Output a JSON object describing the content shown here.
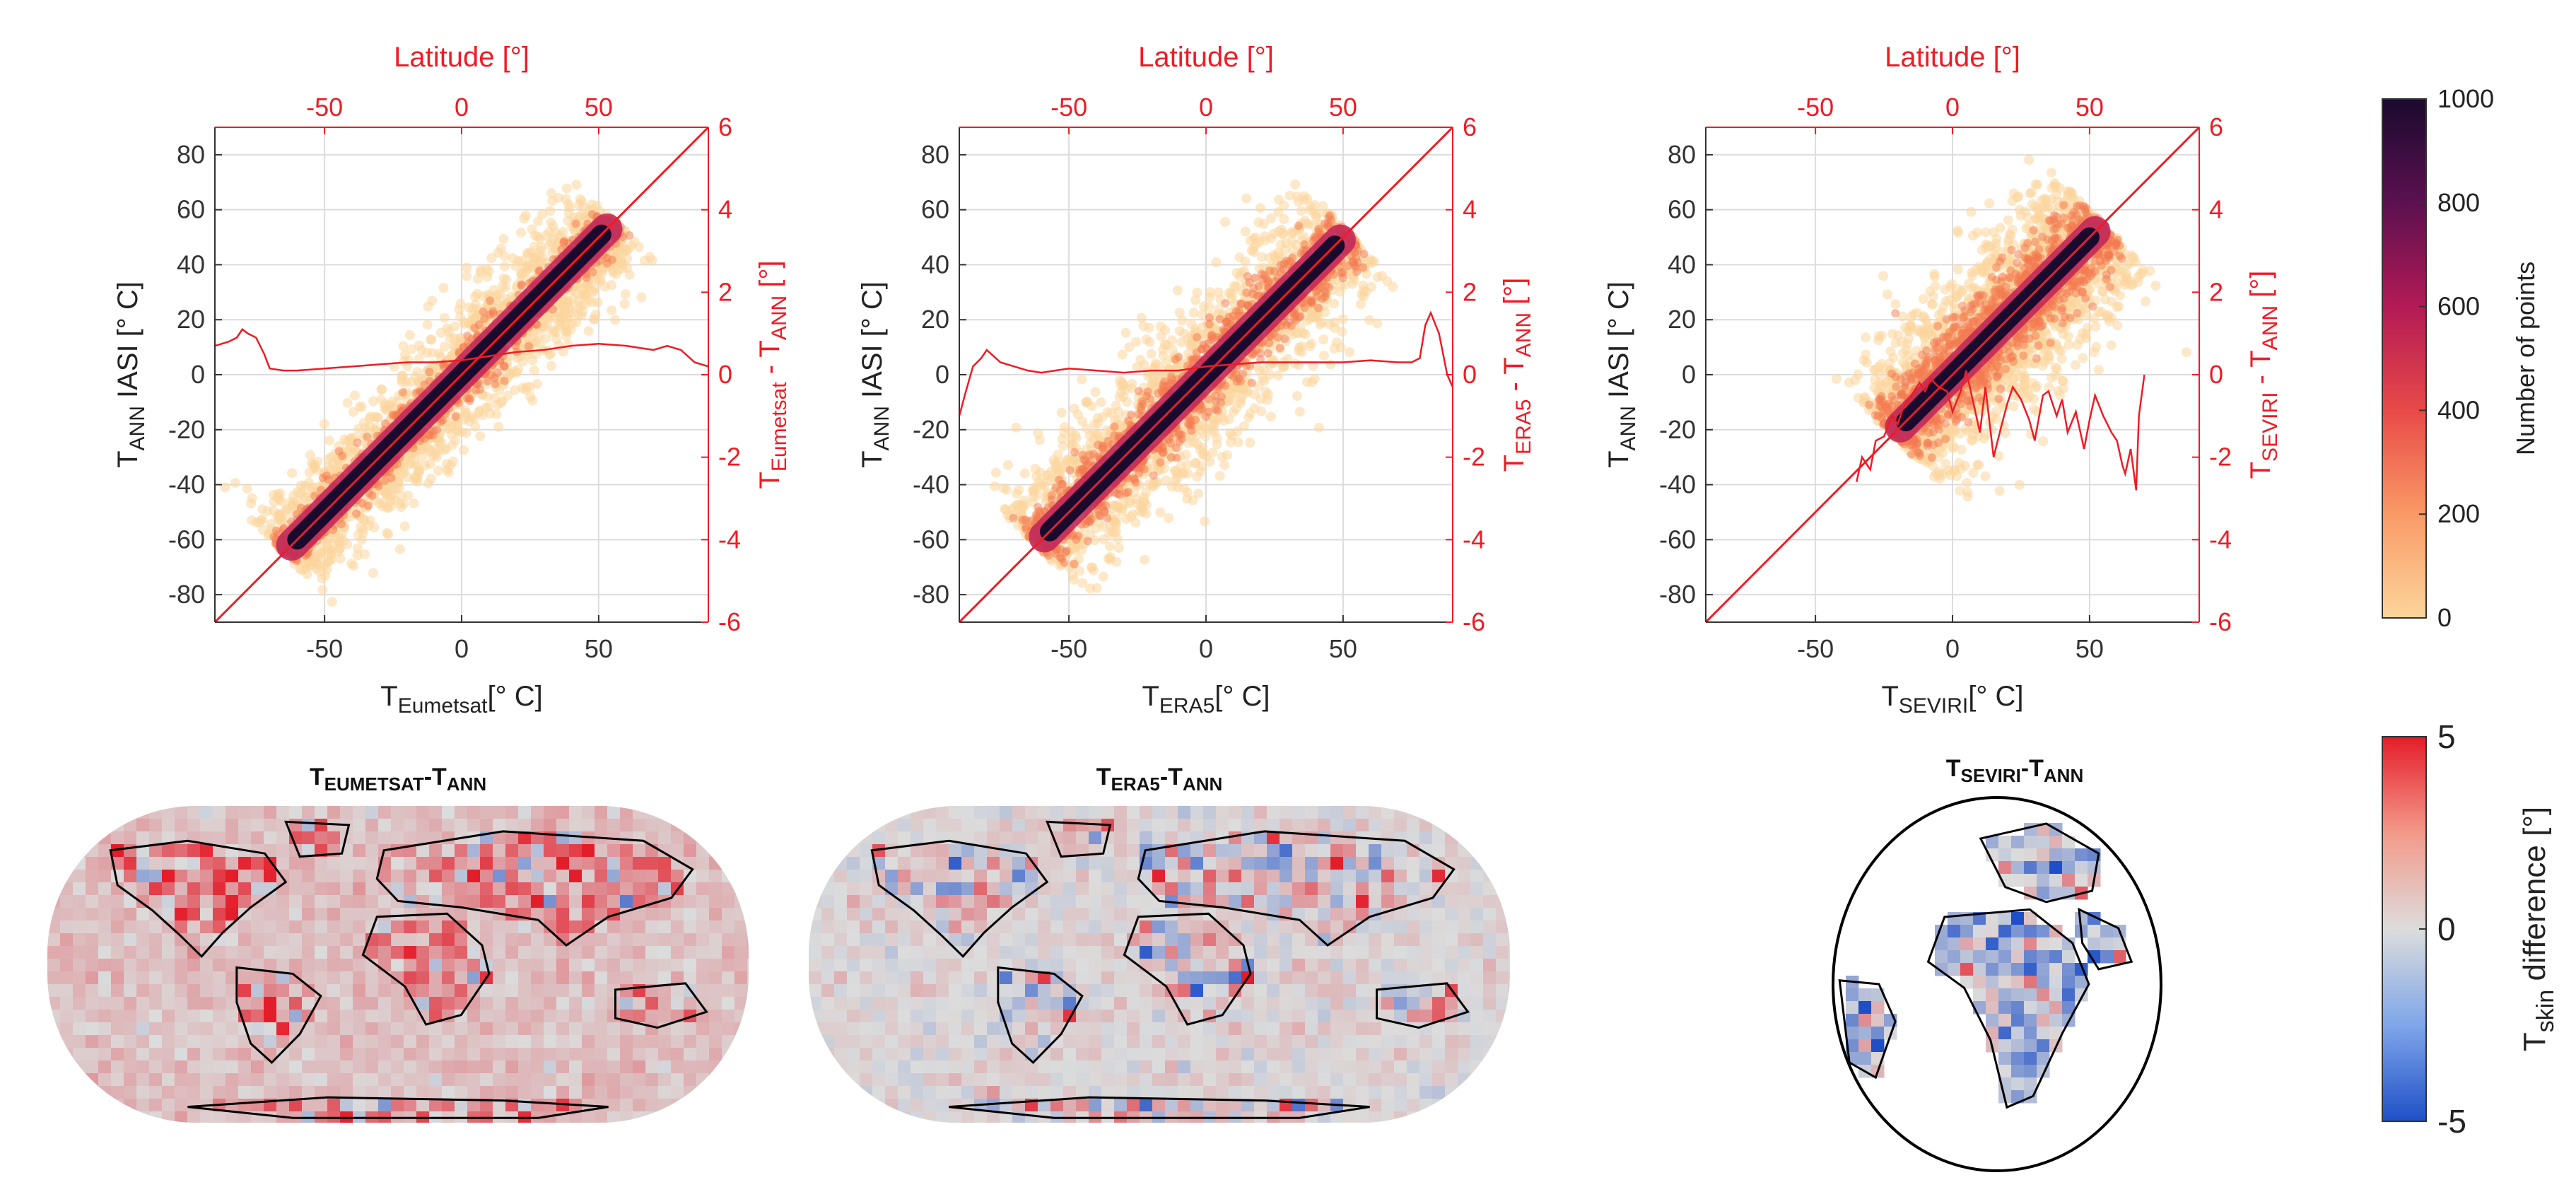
{
  "figure": {
    "red_color": "#ee1c24",
    "density_low_color": "#fbd59c",
    "density_high_color": "#1a0a2e",
    "diff_low_color": "#1f4fc7",
    "diff_mid_color": "#dcdcdc",
    "diff_high_color": "#e41d2a",
    "land_outline_color": "#000000"
  },
  "chart_data": [
    {
      "type": "heatmap",
      "panel": "scatter-eumetsat",
      "xlabel_main": "T",
      "xlabel_sub": "Eumetsat",
      "xlabel_tail": "[° C]",
      "ylabel_main": "T",
      "ylabel_sub": "ANN",
      "ylabel_tail": " IASI [° C]",
      "top_label": "Latitude [°]",
      "right_label_main": "T",
      "right_label_sub1": "Eumetsat",
      "right_label_mid": " - T",
      "right_label_sub2": "ANN",
      "right_label_tail": " [°]",
      "xlim": [
        -90,
        90
      ],
      "ylim": [
        -90,
        90
      ],
      "xticks": [
        -50,
        0,
        50
      ],
      "yticks": [
        -80,
        -60,
        -40,
        -20,
        0,
        20,
        40,
        60,
        80
      ],
      "top_xlim": [
        -90,
        90
      ],
      "top_xticks": [
        -50,
        0,
        50
      ],
      "right_ylim": [
        -6,
        6
      ],
      "right_yticks": [
        -6,
        -4,
        -2,
        0,
        2,
        4,
        6
      ],
      "grid": true,
      "density": {
        "x_range": [
          -65,
          56
        ],
        "spread": 5,
        "outer_spread": 13
      },
      "line": {
        "x": [
          -90,
          -85,
          -82,
          -80,
          -78,
          -75,
          -72,
          -70,
          -65,
          -60,
          -50,
          -40,
          -30,
          -20,
          -10,
          0,
          10,
          20,
          30,
          40,
          50,
          60,
          65,
          70,
          75,
          80,
          85,
          90
        ],
        "y": [
          0.7,
          0.8,
          0.9,
          1.1,
          1.0,
          0.9,
          0.5,
          0.15,
          0.1,
          0.1,
          0.15,
          0.2,
          0.25,
          0.3,
          0.3,
          0.35,
          0.45,
          0.55,
          0.6,
          0.7,
          0.75,
          0.7,
          0.65,
          0.6,
          0.7,
          0.6,
          0.3,
          0.2
        ]
      }
    },
    {
      "type": "heatmap",
      "panel": "scatter-era5",
      "xlabel_main": "T",
      "xlabel_sub": "ERA5",
      "xlabel_tail": "[° C]",
      "ylabel_main": "T",
      "ylabel_sub": "ANN",
      "ylabel_tail": " IASI [° C]",
      "top_label": "Latitude [°]",
      "right_label_main": "T",
      "right_label_sub1": "ERA5",
      "right_label_mid": " - T",
      "right_label_sub2": "ANN",
      "right_label_tail": " [°]",
      "xlim": [
        -90,
        90
      ],
      "ylim": [
        -90,
        90
      ],
      "xticks": [
        -50,
        0,
        50
      ],
      "yticks": [
        -80,
        -60,
        -40,
        -20,
        0,
        20,
        40,
        60,
        80
      ],
      "top_xlim": [
        -90,
        90
      ],
      "top_xticks": [
        -50,
        0,
        50
      ],
      "right_ylim": [
        -6,
        6
      ],
      "right_yticks": [
        -6,
        -4,
        -2,
        0,
        2,
        4,
        6
      ],
      "grid": true,
      "density": {
        "x_range": [
          -62,
          52
        ],
        "spread": 7,
        "outer_spread": 16
      },
      "line": {
        "x": [
          -90,
          -88,
          -85,
          -82,
          -80,
          -75,
          -70,
          -65,
          -60,
          -55,
          -50,
          -40,
          -30,
          -20,
          -10,
          0,
          10,
          20,
          30,
          40,
          50,
          60,
          70,
          75,
          78,
          80,
          82,
          85,
          88,
          90
        ],
        "y": [
          -1.0,
          -0.5,
          0.2,
          0.4,
          0.6,
          0.3,
          0.2,
          0.1,
          0.05,
          0.1,
          0.15,
          0.1,
          0.05,
          0.1,
          0.1,
          0.2,
          0.25,
          0.3,
          0.3,
          0.3,
          0.3,
          0.35,
          0.3,
          0.3,
          0.4,
          1.2,
          1.5,
          1.0,
          0.0,
          -0.3
        ]
      }
    },
    {
      "type": "heatmap",
      "panel": "scatter-seviri",
      "xlabel_main": "T",
      "xlabel_sub": "SEVIRI",
      "xlabel_tail": "[° C]",
      "ylabel_main": "T",
      "ylabel_sub": "ANN",
      "ylabel_tail": " IASI [° C]",
      "top_label": "Latitude [°]",
      "right_label_main": "T",
      "right_label_sub1": "SEVIRI",
      "right_label_mid": " - T",
      "right_label_sub2": "ANN",
      "right_label_tail": " [°]",
      "xlim": [
        -90,
        90
      ],
      "ylim": [
        -90,
        90
      ],
      "xticks": [
        -50,
        0,
        50
      ],
      "yticks": [
        -80,
        -60,
        -40,
        -20,
        0,
        20,
        40,
        60,
        80
      ],
      "top_xlim": [
        -90,
        90
      ],
      "top_xticks": [
        -50,
        0,
        50
      ],
      "right_ylim": [
        -6,
        6
      ],
      "right_yticks": [
        -6,
        -4,
        -2,
        0,
        2,
        4,
        6
      ],
      "grid": true,
      "density": {
        "x_range": [
          -22,
          55
        ],
        "spread": 9,
        "outer_spread": 18
      },
      "line": {
        "x": [
          -35,
          -33,
          -30,
          -28,
          -25,
          -22,
          -20,
          -18,
          -15,
          -12,
          -10,
          -8,
          -5,
          -2,
          0,
          3,
          5,
          8,
          10,
          12,
          15,
          18,
          20,
          22,
          25,
          28,
          30,
          33,
          35,
          38,
          40,
          42,
          45,
          48,
          50,
          52,
          55,
          58,
          60,
          62,
          63,
          65,
          67,
          68,
          70
        ],
        "y": [
          -2.6,
          -2.0,
          -2.3,
          -1.6,
          -1.5,
          -1.0,
          -1.2,
          -0.8,
          -0.5,
          -0.2,
          -0.4,
          -0.1,
          -0.3,
          -0.4,
          -0.9,
          -0.4,
          0.1,
          -0.8,
          -1.4,
          -0.3,
          -2.0,
          -1.2,
          -0.7,
          -0.3,
          -0.6,
          -1.1,
          -1.6,
          -0.5,
          -0.4,
          -1.0,
          -0.6,
          -1.4,
          -0.9,
          -1.8,
          -1.1,
          -0.5,
          -1.0,
          -1.4,
          -1.6,
          -2.2,
          -2.4,
          -1.8,
          -2.8,
          -1.0,
          0.0
        ]
      }
    },
    {
      "type": "heatmap",
      "panel": "map-eumetsat",
      "title_main": "T",
      "title_sub1": "EUMETSAT",
      "title_mid": "-T",
      "title_sub2": "ANN",
      "projection": "global",
      "bias": 0.6
    },
    {
      "type": "heatmap",
      "panel": "map-era5",
      "title_main": "T",
      "title_sub1": "ERA5",
      "title_mid": "-T",
      "title_sub2": "ANN",
      "projection": "global",
      "bias": 0.1
    },
    {
      "type": "heatmap",
      "panel": "map-seviri",
      "title_main": "T",
      "title_sub1": "SEVIRI",
      "title_mid": "-T",
      "title_sub2": "ANN",
      "projection": "disk",
      "bias": -0.4
    }
  ],
  "colorbars": {
    "density": {
      "label": "Number of points",
      "ticks": [
        0,
        200,
        400,
        600,
        800,
        1000
      ],
      "range": [
        0,
        1000
      ]
    },
    "difference": {
      "label_main": "T",
      "label_sub": "skin",
      "label_tail": " difference [°]",
      "ticks": [
        -5,
        0,
        5
      ],
      "range": [
        -5,
        5
      ]
    }
  }
}
